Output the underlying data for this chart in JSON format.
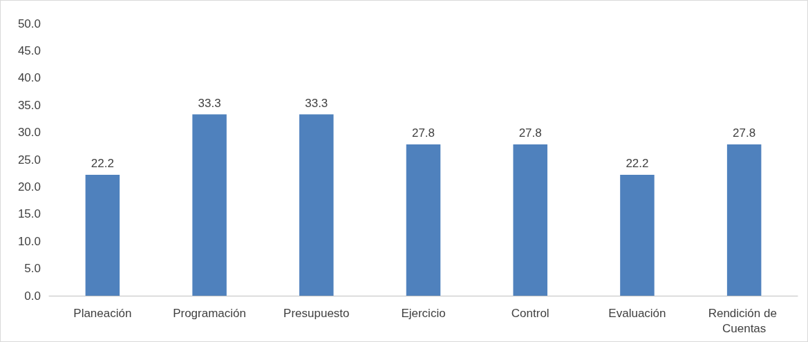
{
  "chart_data": {
    "type": "bar",
    "categories": [
      "Planeación",
      "Programación",
      "Presupuesto",
      "Ejercicio",
      "Control",
      "Evaluación",
      "Rendición de Cuentas"
    ],
    "values": [
      22.2,
      33.3,
      33.3,
      27.8,
      27.8,
      22.2,
      27.8
    ],
    "color": "#4f81bd",
    "ylim": [
      0,
      50
    ],
    "yticks": [
      {
        "value": 0,
        "label": "0.0"
      },
      {
        "value": 5,
        "label": "5.0"
      },
      {
        "value": 10,
        "label": "10.0"
      },
      {
        "value": 15,
        "label": "15.0"
      },
      {
        "value": 20,
        "label": "20.0"
      },
      {
        "value": 25,
        "label": "25.0"
      },
      {
        "value": 30,
        "label": "30.0"
      },
      {
        "value": 35,
        "label": "35.0"
      },
      {
        "value": 40,
        "label": "40.0"
      },
      {
        "value": 45,
        "label": "45.0"
      },
      {
        "value": 50,
        "label": "50.0"
      }
    ],
    "data_labels": true,
    "grid": false
  }
}
